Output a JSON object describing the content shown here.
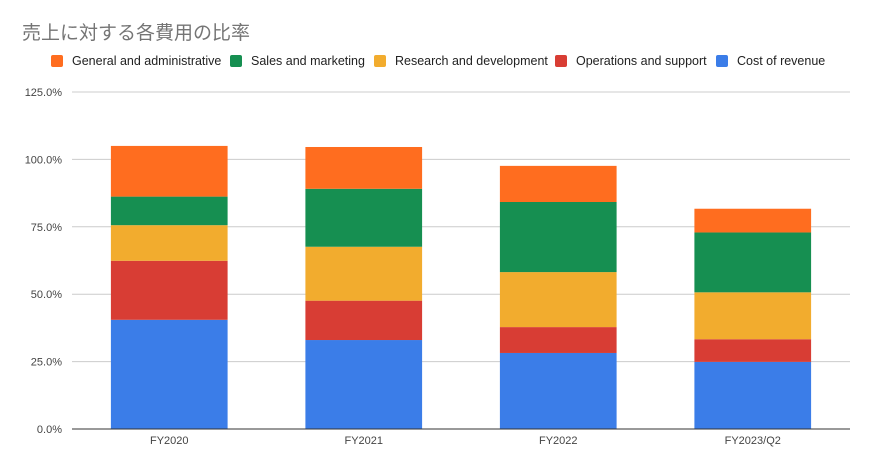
{
  "colors": {
    "General and administrative": "#ff6d1f",
    "Sales and marketing": "#168f51",
    "Research and development": "#f2ac2e",
    "Operations and support": "#d83d34",
    "Cost of revenue": "#3b7de8"
  },
  "chart_data": {
    "type": "bar",
    "stacked": true,
    "title": "売上に対する各費用の比率",
    "xlabel": "",
    "ylabel": "",
    "categories": [
      "FY2020",
      "FY2021",
      "FY2022",
      "FY2023/Q2"
    ],
    "ylim": [
      0,
      125
    ],
    "yticks": [
      "0.0%",
      "25.0%",
      "50.0%",
      "75.0%",
      "100.0%",
      "125.0%"
    ],
    "grid": true,
    "legend_position": "top",
    "legend": [
      "General and administrative",
      "Sales and marketing",
      "Research and development",
      "Operations and support",
      "Cost of revenue"
    ],
    "series": [
      {
        "name": "Cost of revenue",
        "values": [
          40.5,
          33.0,
          28.2,
          24.9
        ]
      },
      {
        "name": "Operations and support",
        "values": [
          21.9,
          14.6,
          9.6,
          8.4
        ]
      },
      {
        "name": "Research and development",
        "values": [
          13.2,
          20.0,
          20.4,
          17.4
        ]
      },
      {
        "name": "Sales and marketing",
        "values": [
          10.6,
          21.5,
          26.0,
          22.2
        ]
      },
      {
        "name": "General and administrative",
        "values": [
          18.8,
          15.5,
          13.4,
          8.8
        ]
      }
    ]
  }
}
